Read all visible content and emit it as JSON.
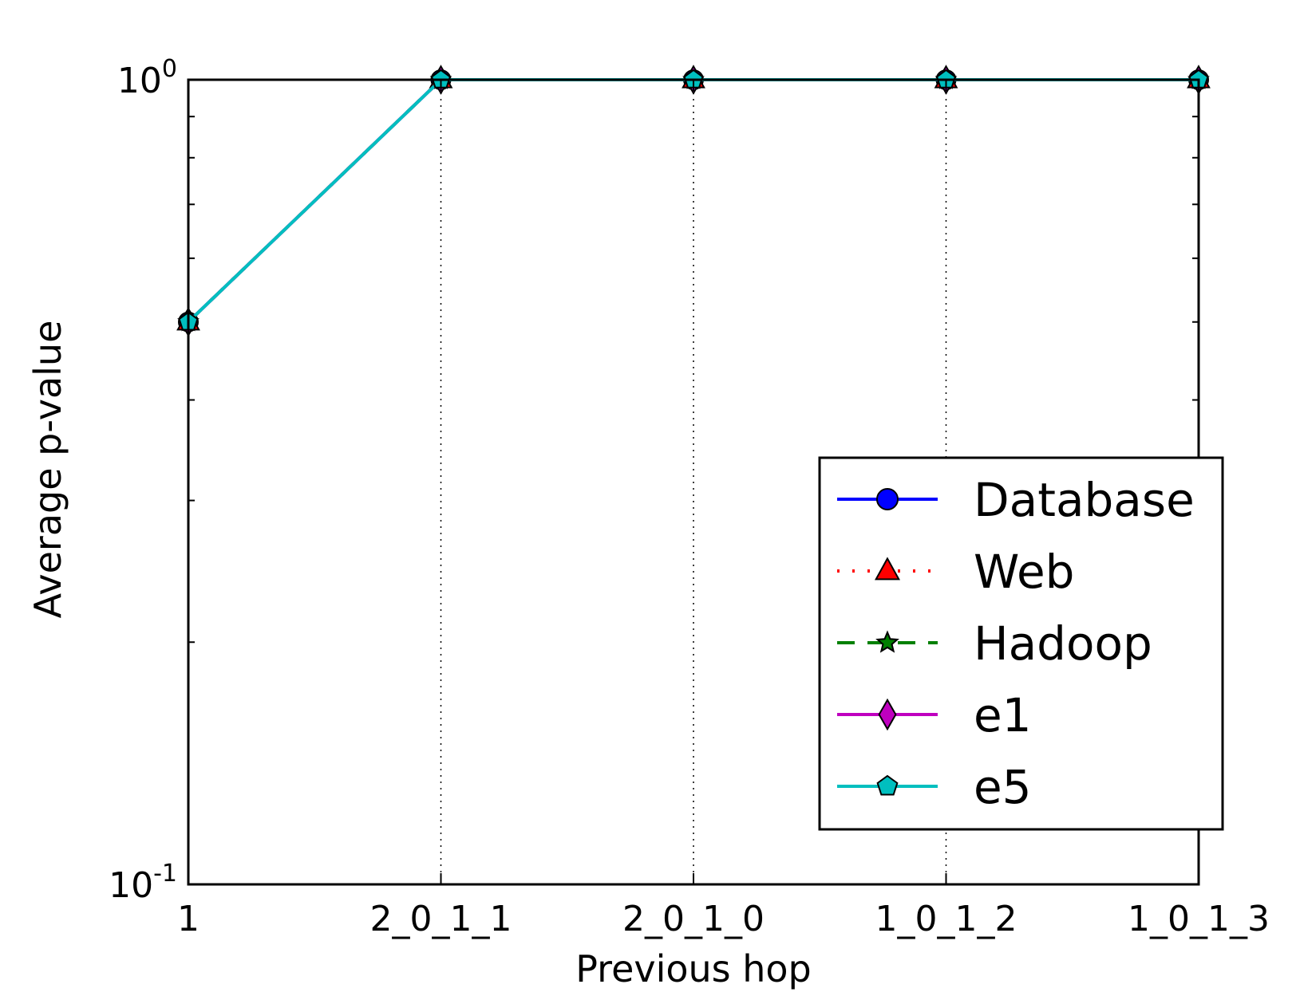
{
  "chart_data": {
    "type": "line",
    "xlabel": "Previous hop",
    "ylabel": "Average p-value",
    "categories": [
      "1",
      "2_0_1_1",
      "2_0_1_0",
      "1_0_1_2",
      "1_0_1_3"
    ],
    "y_scale": "log",
    "ylim": [
      0.1,
      1.0
    ],
    "y_ticks": [
      {
        "base": "10",
        "exp": "-1",
        "value": 0.1
      },
      {
        "base": "10",
        "exp": "0",
        "value": 1.0
      }
    ],
    "grid": "x-only, dotted",
    "legend_position": "lower-right",
    "series": [
      {
        "name": "Database",
        "color": "#0000ff",
        "linestyle": "solid",
        "marker": "circle",
        "values": [
          0.5,
          1.0,
          1.0,
          1.0,
          1.0
        ]
      },
      {
        "name": "Web",
        "color": "#ff0000",
        "linestyle": "dotted",
        "marker": "triangle",
        "values": [
          0.5,
          1.0,
          1.0,
          1.0,
          1.0
        ]
      },
      {
        "name": "Hadoop",
        "color": "#008000",
        "linestyle": "dashed",
        "marker": "star",
        "values": [
          0.5,
          1.0,
          1.0,
          1.0,
          1.0
        ]
      },
      {
        "name": "e1",
        "color": "#bf00bf",
        "linestyle": "solid",
        "marker": "diamond",
        "values": [
          0.5,
          1.0,
          1.0,
          1.0,
          1.0
        ]
      },
      {
        "name": "e5",
        "color": "#00bfbf",
        "linestyle": "solid",
        "marker": "pentagon",
        "values": [
          0.5,
          1.0,
          1.0,
          1.0,
          1.0
        ]
      }
    ]
  }
}
